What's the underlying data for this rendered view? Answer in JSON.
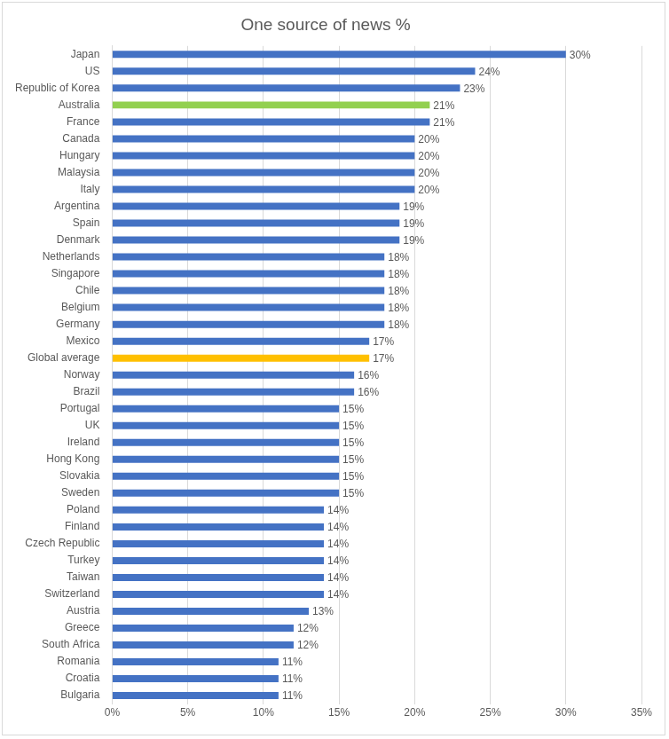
{
  "chart_data": {
    "type": "bar",
    "orientation": "horizontal",
    "title": "One source of news %",
    "categories": [
      "Japan",
      "US",
      "Republic of Korea",
      "Australia",
      "France",
      "Canada",
      "Hungary",
      "Malaysia",
      "Italy",
      "Argentina",
      "Spain",
      "Denmark",
      "Netherlands",
      "Singapore",
      "Chile",
      "Belgium",
      "Germany",
      "Mexico",
      "Global average",
      "Norway",
      "Brazil",
      "Portugal",
      "UK",
      "Ireland",
      "Hong Kong",
      "Slovakia",
      "Sweden",
      "Poland",
      "Finland",
      "Czech Republic",
      "Turkey",
      "Taiwan",
      "Switzerland",
      "Austria",
      "Greece",
      "South Africa",
      "Romania",
      "Croatia",
      "Bulgaria"
    ],
    "values": [
      30,
      24,
      23,
      21,
      21,
      20,
      20,
      20,
      20,
      19,
      19,
      19,
      18,
      18,
      18,
      18,
      18,
      17,
      17,
      16,
      16,
      15,
      15,
      15,
      15,
      15,
      15,
      14,
      14,
      14,
      14,
      14,
      14,
      13,
      12,
      12,
      11,
      11,
      11
    ],
    "value_labels": [
      "30%",
      "24%",
      "23%",
      "21%",
      "21%",
      "20%",
      "20%",
      "20%",
      "20%",
      "19%",
      "19%",
      "19%",
      "18%",
      "18%",
      "18%",
      "18%",
      "18%",
      "17%",
      "17%",
      "16%",
      "16%",
      "15%",
      "15%",
      "15%",
      "15%",
      "15%",
      "15%",
      "14%",
      "14%",
      "14%",
      "14%",
      "14%",
      "14%",
      "13%",
      "12%",
      "12%",
      "11%",
      "11%",
      "11%"
    ],
    "colors": [
      "#4472c4",
      "#4472c4",
      "#4472c4",
      "#92d050",
      "#4472c4",
      "#4472c4",
      "#4472c4",
      "#4472c4",
      "#4472c4",
      "#4472c4",
      "#4472c4",
      "#4472c4",
      "#4472c4",
      "#4472c4",
      "#4472c4",
      "#4472c4",
      "#4472c4",
      "#4472c4",
      "#ffc000",
      "#4472c4",
      "#4472c4",
      "#4472c4",
      "#4472c4",
      "#4472c4",
      "#4472c4",
      "#4472c4",
      "#4472c4",
      "#4472c4",
      "#4472c4",
      "#4472c4",
      "#4472c4",
      "#4472c4",
      "#4472c4",
      "#4472c4",
      "#4472c4",
      "#4472c4",
      "#4472c4",
      "#4472c4",
      "#4472c4"
    ],
    "xlim": [
      0,
      35
    ],
    "xticks": [
      {
        "value": 0,
        "label": "0%"
      },
      {
        "value": 5,
        "label": "5%"
      },
      {
        "value": 10,
        "label": "10%"
      },
      {
        "value": 15,
        "label": "15%"
      },
      {
        "value": 20,
        "label": "20%"
      },
      {
        "value": 25,
        "label": "25%"
      },
      {
        "value": 30,
        "label": "30%"
      },
      {
        "value": 35,
        "label": "35%"
      }
    ],
    "grid": true,
    "data_labels": true
  }
}
